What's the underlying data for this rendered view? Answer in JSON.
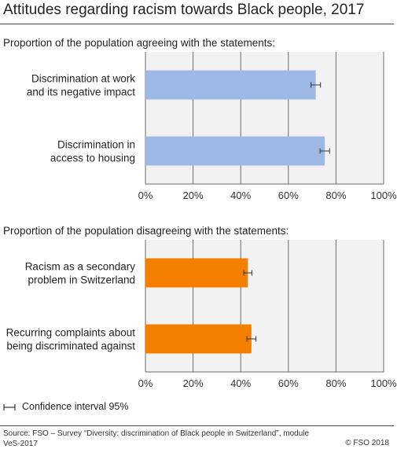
{
  "title": "Attitudes regarding racism towards Black people, 2017",
  "colors": {
    "agree": "#9db8e5",
    "disagree": "#f57f00",
    "plot_bg": "#f2f2f2",
    "grid": "#6b6b6b"
  },
  "chart_data": [
    {
      "type": "bar",
      "orientation": "horizontal",
      "title": "Proportion of the population agreeing with the statements:",
      "categories": [
        "Discrimination at work and its negative impact",
        "Discrimination in access to housing"
      ],
      "values": [
        71.5,
        75.3
      ],
      "error": [
        [
          69.5,
          73.5
        ],
        [
          73.3,
          77.3
        ]
      ],
      "xlim": [
        0,
        100
      ],
      "x_ticks": [
        "0%",
        "20%",
        "40%",
        "60%",
        "80%",
        "100%"
      ],
      "grid": true
    },
    {
      "type": "bar",
      "orientation": "horizontal",
      "title": "Proportion of the population disagreeing with the statements:",
      "categories": [
        "Racism as a secondary problem in Switzerland",
        "Recurring complaints about being discriminated against"
      ],
      "values": [
        43,
        44.5
      ],
      "error": [
        [
          41.3,
          44.7
        ],
        [
          42.6,
          46.4
        ]
      ],
      "xlim": [
        0,
        100
      ],
      "x_ticks": [
        "0%",
        "20%",
        "40%",
        "60%",
        "80%",
        "100%"
      ],
      "grid": true
    }
  ],
  "legend": {
    "label": "Confidence interval 95%"
  },
  "source": "Source: FSO – Survey “Diversity: discrimination of Black people in Switzerland”, module VeS-2017",
  "copyright": "© FSO 2018"
}
